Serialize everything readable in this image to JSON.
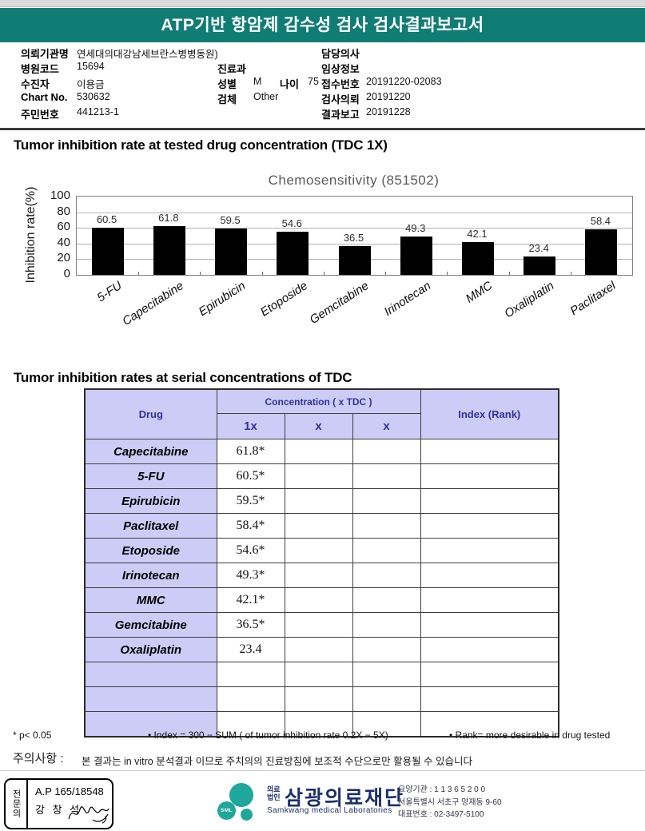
{
  "header": {
    "title": "ATP기반 항암제 감수성 검사 검사결과보고서"
  },
  "patient_info": {
    "rows": [
      {
        "l_label": "의뢰기관명",
        "l_value": "연세대의대강남세브란스병병동원)",
        "r_label": "담당의사",
        "r_value": ""
      },
      {
        "l_label": "병원코드",
        "l_value": "15694",
        "m_label": "진료과",
        "m_value": "",
        "r_label": "임상정보",
        "r_value": ""
      },
      {
        "l_label": "수진자",
        "l_value": "이용금",
        "m_label": "성별",
        "m_value": "M",
        "m2_label": "나이",
        "m2_value": "75",
        "r_label": "접수번호",
        "r_value": "20191220-02083"
      },
      {
        "l_label": "Chart No.",
        "l_value": "530632",
        "m_label": "검체",
        "m_value": "Other",
        "r_label": "검사의뢰",
        "r_value": "20191220"
      },
      {
        "l_label": "주민번호",
        "l_value": "441213-1",
        "r_label": "결과보고",
        "r_value": "20191228"
      }
    ]
  },
  "section1": {
    "title": "Tumor inhibition rate at tested drug concentration (TDC 1X)"
  },
  "chart_data": {
    "type": "bar",
    "title": "Chemosensitivity (851502)",
    "ylabel": "Inhibition rate(%)",
    "categories": [
      "5-FU",
      "Capecitabine",
      "Epirubicin",
      "Etoposide",
      "Gemcitabine",
      "Irinotecan",
      "MMC",
      "Oxaliplatin",
      "Paclitaxel"
    ],
    "values": [
      60.5,
      61.8,
      59.5,
      54.6,
      36.5,
      49.3,
      42.1,
      23.4,
      58.4
    ],
    "ylim": [
      0,
      100
    ],
    "yticks": [
      0,
      20,
      40,
      60,
      80,
      100
    ],
    "grid": true,
    "legend": "none",
    "bar_color": "#000000"
  },
  "section2": {
    "title": "Tumor inhibition rates at serial concentrations of TDC"
  },
  "table": {
    "header": {
      "drug": "Drug",
      "concentration": "Concentration ( x TDC )",
      "sub1": "1x",
      "sub2": "x",
      "sub3": "x",
      "index": "Index (Rank)"
    },
    "rows": [
      {
        "drug": "Capecitabine",
        "v1": "61.8*",
        "v2": "",
        "v3": "",
        "index": ""
      },
      {
        "drug": "5-FU",
        "v1": "60.5*",
        "v2": "",
        "v3": "",
        "index": ""
      },
      {
        "drug": "Epirubicin",
        "v1": "59.5*",
        "v2": "",
        "v3": "",
        "index": ""
      },
      {
        "drug": "Paclitaxel",
        "v1": "58.4*",
        "v2": "",
        "v3": "",
        "index": ""
      },
      {
        "drug": "Etoposide",
        "v1": "54.6*",
        "v2": "",
        "v3": "",
        "index": ""
      },
      {
        "drug": "Irinotecan",
        "v1": "49.3*",
        "v2": "",
        "v3": "",
        "index": ""
      },
      {
        "drug": "MMC",
        "v1": "42.1*",
        "v2": "",
        "v3": "",
        "index": ""
      },
      {
        "drug": "Gemcitabine",
        "v1": "36.5*",
        "v2": "",
        "v3": "",
        "index": ""
      },
      {
        "drug": "Oxaliplatin",
        "v1": "23.4",
        "v2": "",
        "v3": "",
        "index": ""
      },
      {
        "drug": "",
        "v1": "",
        "v2": "",
        "v3": "",
        "index": ""
      },
      {
        "drug": "",
        "v1": "",
        "v2": "",
        "v3": "",
        "index": ""
      },
      {
        "drug": "",
        "v1": "",
        "v2": "",
        "v3": "",
        "index": ""
      }
    ]
  },
  "footnotes": {
    "p": "* p< 0.05",
    "index": "• Index = 300 − SUM ( of tumor inhibition rate 0.2X  −  5X)",
    "rank": "• Rank= more desirable in drug tested"
  },
  "caution": {
    "label": "주의사항 :",
    "text": "본 결과는 in vitro 분석결과 이므로 주치의의 진료방침에 보조적 수단으로만 활용될 수 있습니다"
  },
  "footer": {
    "stamp": {
      "role": "전문의",
      "license": "A.P 165/18548",
      "name": "강 창 석"
    },
    "logo": {
      "sml": "SML",
      "org_type_line1": "의료",
      "org_type_line2": "법인",
      "org_name": "삼광의료재단",
      "org_en": "Samkwang medical Laboratories"
    },
    "contact": {
      "care_org": "요양기관 : 1 1 3 6 5 2 0 0",
      "address": "서울특별시 서초구 양재동 9-60",
      "phone": "대표번호 : 02-3497-5100"
    }
  },
  "colors": {
    "banner_teal": "#107d75",
    "logo_teal": "#1ea79a",
    "table_lavender": "#ccccf7",
    "table_navy": "#3232a0",
    "bar_black": "#000000"
  }
}
